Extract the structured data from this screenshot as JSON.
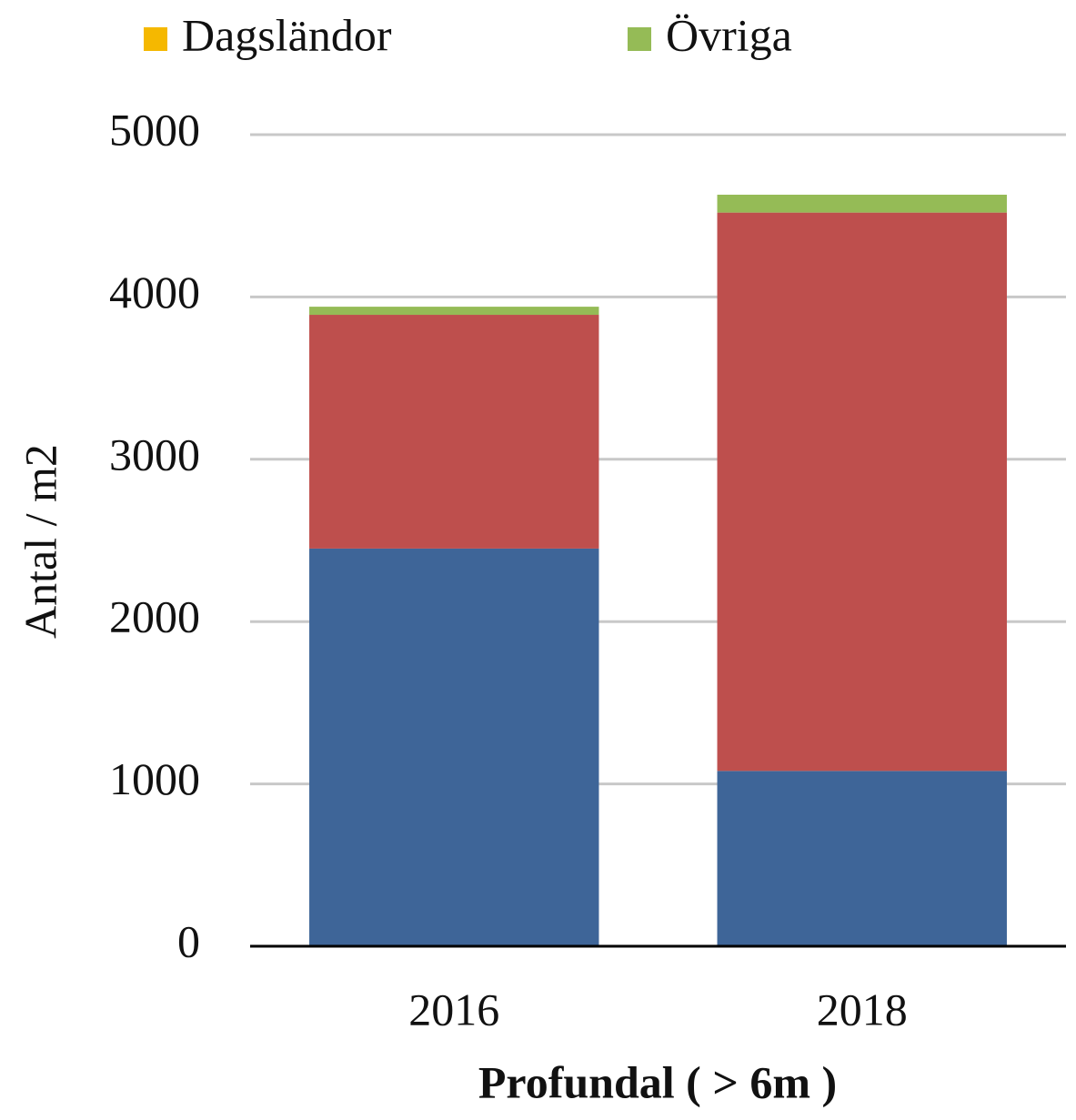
{
  "chart_data": {
    "type": "stacked_bar",
    "categories": [
      "2016",
      "2018"
    ],
    "series": [
      {
        "color": "#3e6598",
        "values": [
          2450,
          1080
        ]
      },
      {
        "color": "#be4f4d",
        "values": [
          1440,
          3440
        ]
      },
      {
        "name": "Dagsländor",
        "color": "#f5b800",
        "values": [
          0,
          0
        ]
      },
      {
        "name": "Övriga",
        "color": "#95bb56",
        "values": [
          50,
          110
        ]
      }
    ],
    "xlabel": "Profundal ( > 6m )",
    "ylabel": "Antal / m2",
    "ylim": [
      0,
      5000
    ],
    "yticks": [
      0,
      1000,
      2000,
      3000,
      4000,
      5000
    ],
    "grid": true,
    "legend": "top"
  }
}
